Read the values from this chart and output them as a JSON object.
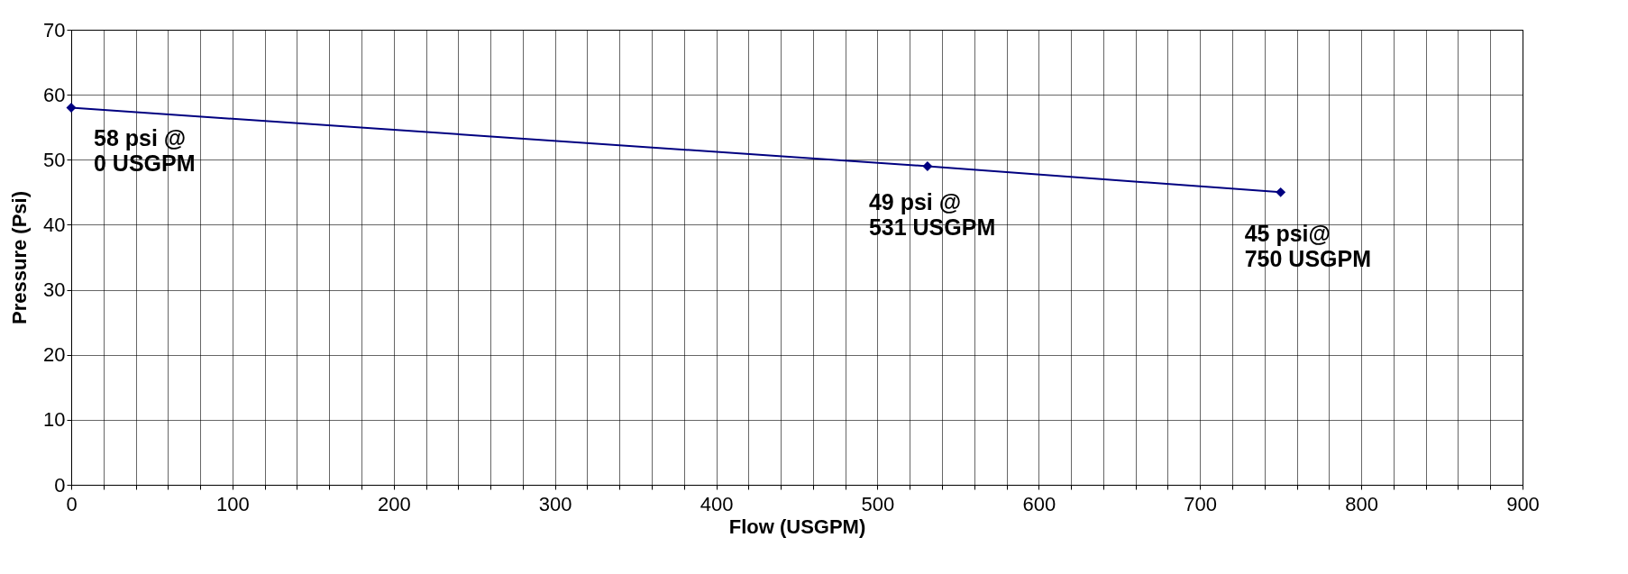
{
  "chart_data": {
    "type": "line",
    "xlabel": "Flow (USGPM)",
    "ylabel": "Pressure (Psi)",
    "x": [
      0,
      531,
      750
    ],
    "series": [
      {
        "color": "#000080",
        "values": [
          58,
          49,
          45
        ]
      }
    ],
    "marker": "diamond",
    "line_style": "solid",
    "grid": true,
    "xlim": [
      0,
      900
    ],
    "ylim": [
      0,
      70
    ],
    "xticks": [
      0,
      {
        "value": 20,
        "label": null
      },
      {
        "value": 40,
        "label": null
      },
      {
        "value": 60,
        "label": null
      },
      {
        "value": 80,
        "label": null
      },
      100,
      {
        "value": 120,
        "label": null
      },
      {
        "value": 140,
        "label": null
      },
      {
        "value": 160,
        "label": null
      },
      {
        "value": 180,
        "label": null
      },
      200,
      {
        "value": 220,
        "label": null
      },
      {
        "value": 240,
        "label": null
      },
      {
        "value": 260,
        "label": null
      },
      {
        "value": 280,
        "label": null
      },
      300,
      {
        "value": 320,
        "label": null
      },
      {
        "value": 340,
        "label": null
      },
      {
        "value": 360,
        "label": null
      },
      {
        "value": 380,
        "label": null
      },
      400,
      {
        "value": 420,
        "label": null
      },
      {
        "value": 440,
        "label": null
      },
      {
        "value": 460,
        "label": null
      },
      {
        "value": 480,
        "label": null
      },
      500,
      {
        "value": 520,
        "label": null
      },
      {
        "value": 540,
        "label": null
      },
      {
        "value": 560,
        "label": null
      },
      {
        "value": 580,
        "label": null
      },
      600,
      {
        "value": 620,
        "label": null
      },
      {
        "value": 640,
        "label": null
      },
      {
        "value": 660,
        "label": null
      },
      {
        "value": 680,
        "label": null
      },
      700,
      {
        "value": 720,
        "label": null
      },
      {
        "value": 740,
        "label": null
      },
      {
        "value": 760,
        "label": null
      },
      {
        "value": 780,
        "label": null
      },
      800,
      {
        "value": 820,
        "label": null
      },
      {
        "value": 840,
        "label": null
      },
      {
        "value": 860,
        "label": null
      },
      {
        "value": 880,
        "label": null
      },
      900
    ],
    "yticks": [
      0,
      10,
      20,
      30,
      40,
      50,
      60,
      70
    ],
    "annotations": [
      {
        "text": "58 psi @\n0 USGPM",
        "x": 0,
        "y": 58
      },
      {
        "text": "49 psi @\n 531 USGPM",
        "x": 531,
        "y": 49
      },
      {
        "text": "45 psi@\n750 USGPM",
        "x": 750,
        "y": 45
      }
    ]
  }
}
